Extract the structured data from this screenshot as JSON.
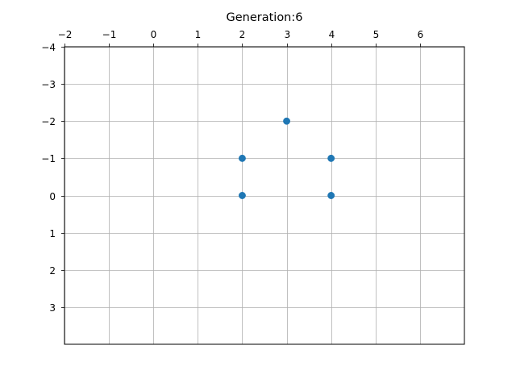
{
  "chart_data": {
    "type": "scatter",
    "title": "Generation:6",
    "xlabel": "",
    "ylabel": "",
    "xlim": [
      -2,
      7
    ],
    "ylim": [
      -4,
      4
    ],
    "y_inverted": true,
    "x_axis_position": "top",
    "grid": true,
    "x_ticks": [
      -2,
      -1,
      0,
      1,
      2,
      3,
      4,
      5,
      6
    ],
    "x_tick_labels": [
      "−2",
      "−1",
      "0",
      "1",
      "2",
      "3",
      "4",
      "5",
      "6"
    ],
    "y_ticks": [
      -4,
      -3,
      -2,
      -1,
      0,
      1,
      2,
      3
    ],
    "y_tick_labels": [
      "−4",
      "−3",
      "−2",
      "−1",
      "0",
      "1",
      "2",
      "3"
    ],
    "series": [
      {
        "color": "#1f77b4",
        "x": [
          3,
          2,
          4,
          2,
          4
        ],
        "y": [
          -2,
          -1,
          -1,
          0,
          0
        ]
      }
    ]
  }
}
